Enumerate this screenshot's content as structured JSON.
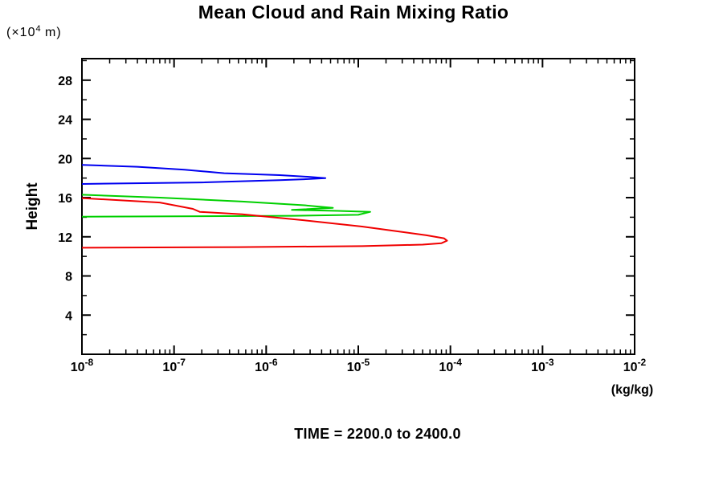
{
  "page": {
    "background": "#ffffff"
  },
  "y_unit": {
    "prefix": "(×10",
    "exp": "4",
    "suffix": " m)"
  },
  "chart_data": {
    "type": "line",
    "title": "Mean Cloud and Rain Mixing Ratio",
    "xlabel": "(kg/kg)",
    "ylabel": "Height",
    "y_unit_label": "(x10^4 m)",
    "annotation": "TIME = 2200.0 to 2400.0",
    "x_scale": "log",
    "grid": false,
    "legend": "none",
    "axis_color": "#000000",
    "xlim_exponents": [
      -8,
      -2
    ],
    "x_tick_exponents": [
      -8,
      -7,
      -6,
      -5,
      -4,
      -3,
      -2
    ],
    "ylim": [
      0,
      30.2
    ],
    "y_major_ticks": [
      4,
      8,
      12,
      16,
      20,
      24,
      28
    ],
    "y_minor_step": 2,
    "series": [
      {
        "name": "blue-profile",
        "color": "#0000f0",
        "points": [
          [
            1e-08,
            19.35
          ],
          [
            4e-08,
            19.15
          ],
          [
            1.3e-07,
            18.85
          ],
          [
            3.5e-07,
            18.5
          ],
          [
            1.4e-06,
            18.3
          ],
          [
            3e-06,
            18.12
          ],
          [
            4.4e-06,
            18.0
          ],
          [
            2.6e-06,
            17.88
          ],
          [
            1.4e-06,
            17.78
          ],
          [
            2e-07,
            17.55
          ],
          [
            1e-08,
            17.4
          ]
        ]
      },
      {
        "name": "green-profile",
        "color": "#00d000",
        "points": [
          [
            1e-08,
            16.3
          ],
          [
            7e-08,
            16.0
          ],
          [
            5.5e-07,
            15.6
          ],
          [
            2.6e-06,
            15.22
          ],
          [
            5.3e-06,
            14.95
          ],
          [
            1.9e-06,
            14.75
          ],
          [
            6e-06,
            14.65
          ],
          [
            1.35e-05,
            14.55
          ],
          [
            1e-05,
            14.25
          ],
          [
            2e-06,
            14.15
          ],
          [
            1e-08,
            14.05
          ]
        ]
      },
      {
        "name": "red-profile",
        "color": "#f00000",
        "points": [
          [
            1e-08,
            15.95
          ],
          [
            7e-08,
            15.5
          ],
          [
            1.6e-07,
            14.85
          ],
          [
            1.9e-07,
            14.55
          ],
          [
            5.5e-07,
            14.3
          ],
          [
            2.6e-06,
            13.68
          ],
          [
            1.1e-05,
            13.05
          ],
          [
            3e-05,
            12.5
          ],
          [
            5.5e-05,
            12.15
          ],
          [
            8.5e-05,
            11.85
          ],
          [
            9.2e-05,
            11.6
          ],
          [
            8e-05,
            11.35
          ],
          [
            5e-05,
            11.2
          ],
          [
            1.1e-05,
            11.05
          ],
          [
            5e-07,
            10.95
          ],
          [
            1e-08,
            10.88
          ]
        ]
      }
    ]
  }
}
